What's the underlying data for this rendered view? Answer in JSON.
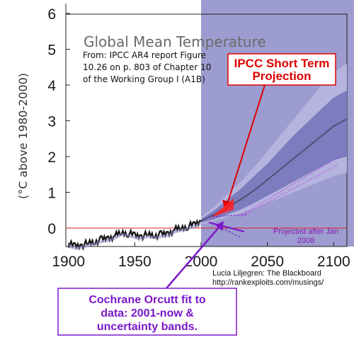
{
  "chart_data": {
    "type": "line",
    "title": "Global Mean Temperature",
    "ylabel": "(°C above 1980-2000)",
    "xlabel": "",
    "xlim": [
      1898,
      2110
    ],
    "ylim": [
      -0.5,
      6
    ],
    "x_ticks": [
      "1900",
      "1950",
      "2000",
      "2050",
      "2100"
    ],
    "y_ticks": [
      "0",
      "1",
      "2",
      "3",
      "4",
      "5",
      "6"
    ],
    "source_note": [
      "From: IPCC AR4 report Figure",
      "10.26 on p. 803 of Chapter 10",
      "of the Working Group I (A1B)"
    ],
    "observed": {
      "x": [
        1900,
        1905,
        1910,
        1915,
        1920,
        1925,
        1930,
        1935,
        1940,
        1945,
        1950,
        1955,
        1960,
        1965,
        1970,
        1975,
        1980,
        1985,
        1990,
        1995,
        2000
      ],
      "y": [
        -0.45,
        -0.5,
        -0.48,
        -0.42,
        -0.38,
        -0.32,
        -0.28,
        -0.22,
        -0.12,
        -0.15,
        -0.2,
        -0.22,
        -0.18,
        -0.2,
        -0.18,
        -0.15,
        -0.05,
        0,
        0.05,
        0.1,
        0.2
      ]
    },
    "projection": {
      "x": [
        2000,
        2010,
        2020,
        2030,
        2040,
        2050,
        2060,
        2070,
        2080,
        2090,
        2100,
        2110
      ],
      "mean": [
        0.2,
        0.38,
        0.58,
        0.8,
        1.05,
        1.35,
        1.65,
        1.95,
        2.25,
        2.55,
        2.85,
        3.05
      ],
      "likely_low": [
        0.15,
        0.25,
        0.38,
        0.52,
        0.7,
        0.9,
        1.1,
        1.3,
        1.5,
        1.7,
        1.9,
        2.0
      ],
      "likely_high": [
        0.25,
        0.5,
        0.8,
        1.1,
        1.45,
        1.8,
        2.2,
        2.6,
        2.95,
        3.3,
        3.65,
        3.85
      ],
      "range_low": [
        0.1,
        0.2,
        0.3,
        0.42,
        0.55,
        0.7,
        0.85,
        1.0,
        1.15,
        1.3,
        1.45,
        1.55
      ],
      "range_high": [
        0.3,
        0.6,
        0.95,
        1.3,
        1.7,
        2.15,
        2.6,
        3.05,
        3.5,
        3.95,
        4.35,
        4.6
      ]
    },
    "shaded_region": {
      "x_start": 2000,
      "x_end": 2110,
      "color": "#9c9cd0"
    },
    "zero_line": {
      "y": 0,
      "color": "#e02020"
    },
    "colors": {
      "band_outer": "#b4b4de",
      "band_inner": "#7c7cbe",
      "mean_line": "#505078",
      "observed": "#111111",
      "ipcc_red": "#e00000",
      "purple": "#7a18c8"
    }
  },
  "annotations": {
    "ipcc_projection": [
      "IPCC Short Term",
      "Projection"
    ],
    "projected_after": [
      "Projected after Jan",
      "2008"
    ],
    "credit": [
      "Lucia Liljegren: The Blackboard",
      "http://rankexploits.com/musings/"
    ],
    "cochrane_orcutt": [
      "Cochrane Orcutt fit to",
      "data: 2001-now &",
      "uncertainty bands."
    ]
  }
}
